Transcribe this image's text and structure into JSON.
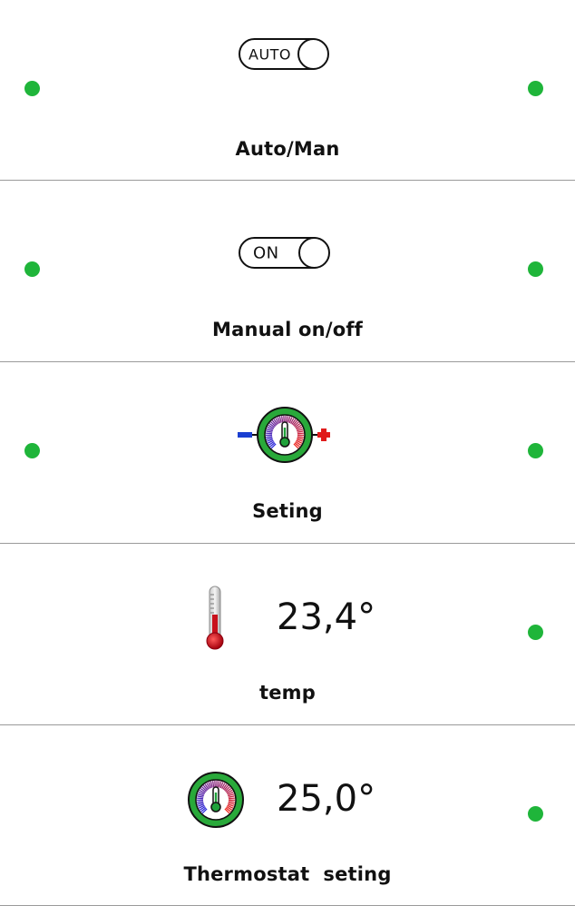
{
  "colors": {
    "status_dot": "#1fb53a",
    "dial_ring": "#29a93a",
    "minus": "#1a3fd1",
    "plus": "#e01b1b",
    "thermometer_red": "#c8101b"
  },
  "tiles": [
    {
      "label": "Auto/Man",
      "icon": "auto-toggle-icon",
      "toggle_text": "AUTO",
      "left_dot": true,
      "right_dot": true
    },
    {
      "label": "Manual on/off",
      "icon": "on-toggle-icon",
      "toggle_text": "ON",
      "left_dot": true,
      "right_dot": true
    },
    {
      "label": "Seting",
      "icon": "thermostat-adjust-icon",
      "left_dot": true,
      "right_dot": true
    },
    {
      "label": "temp",
      "icon": "thermometer-icon",
      "value": "23,4°",
      "left_dot": false,
      "right_dot": true
    },
    {
      "label": "Thermostat  seting",
      "icon": "thermostat-dial-icon",
      "value": "25,0°",
      "left_dot": false,
      "right_dot": true
    }
  ]
}
